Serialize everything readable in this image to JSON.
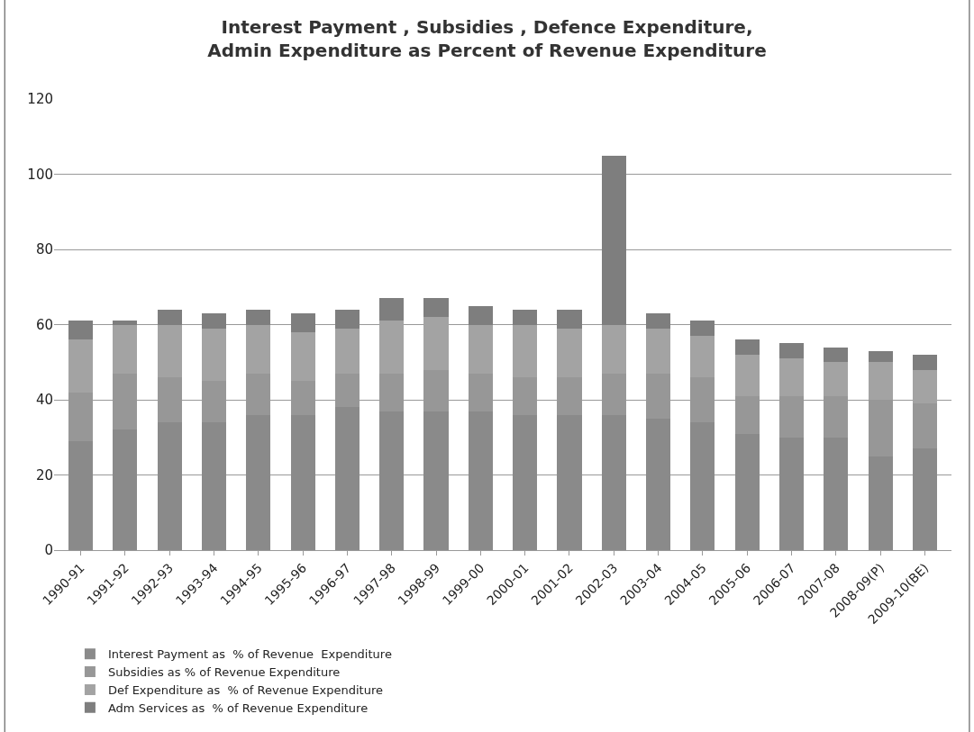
{
  "chart_data": {
    "type": "bar",
    "title": "Interest Payment , Subsidies , Defence Expenditure, Admin Expenditure as Percent of Revenue Expenditure",
    "categories": [
      "1990-91",
      "1991-92",
      "1992-93",
      "1993-94",
      "1994-95",
      "1995-96",
      "1996-97",
      "1997-98",
      "1998-99",
      "1999-00",
      "2000-01",
      "2001-02",
      "2002-03",
      "2003-04",
      "2004-05",
      "2005-06",
      "2006-07",
      "2007-08",
      "2008-09(P)",
      "2009-10(BE)"
    ],
    "stacked": true,
    "series": [
      {
        "name": "Interest Payment as  % of Revenue  Expenditure",
        "color": "#8a8a8a",
        "values": [
          29,
          32,
          34,
          34,
          36,
          36,
          38,
          37,
          37,
          37,
          36,
          36,
          36,
          35,
          34,
          31,
          30,
          30,
          25,
          27
        ]
      },
      {
        "name": "Subsidies as % of Revenue Expenditure",
        "color": "#979797",
        "values": [
          13,
          15,
          12,
          11,
          11,
          9,
          9,
          10,
          11,
          10,
          10,
          10,
          11,
          12,
          12,
          10,
          11,
          11,
          15,
          12
        ]
      },
      {
        "name": "Def Expenditure as  % of Revenue Expenditure",
        "color": "#a3a3a3",
        "values": [
          14,
          13,
          14,
          14,
          13,
          13,
          12,
          14,
          14,
          13,
          14,
          13,
          13,
          12,
          11,
          11,
          10,
          9,
          10,
          9
        ]
      },
      {
        "name": "Adm Services as  % of Revenue Expenditure",
        "color": "#7e7e7e",
        "values": [
          5,
          1,
          4,
          4,
          4,
          5,
          5,
          6,
          5,
          5,
          4,
          5,
          45,
          4,
          4,
          4,
          4,
          4,
          3,
          4
        ]
      }
    ],
    "ylim": [
      0,
      120
    ],
    "yticks": [
      0,
      20,
      40,
      60,
      80,
      100,
      120
    ],
    "grid": "y",
    "legend": "bottom"
  }
}
